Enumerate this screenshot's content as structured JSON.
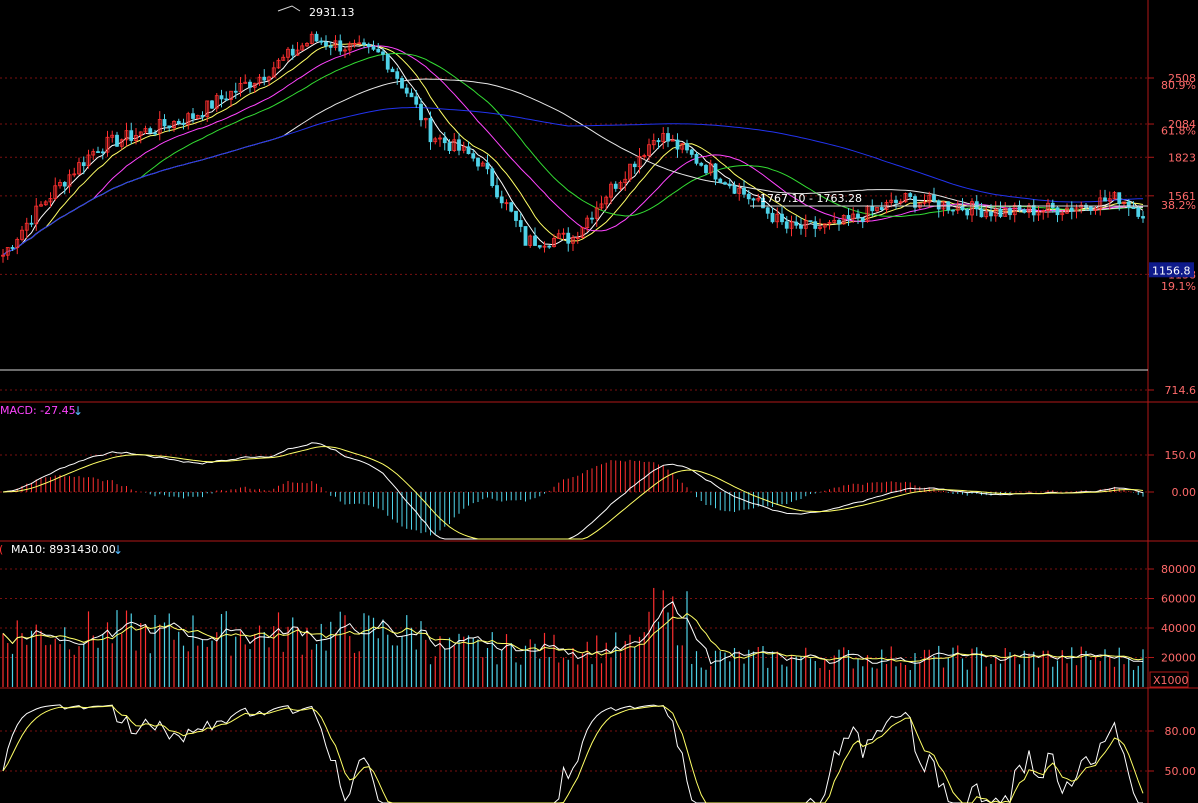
{
  "colors": {
    "background": "#000000",
    "frame": "#b01818",
    "grid": "#7a1010",
    "axis_text": "#ff6a6a",
    "up_candle": "#ff3030",
    "down_candle": "#4fd2e8",
    "ma5": "#ffffff",
    "ma10": "#ffff66",
    "ma20": "#ff44ff",
    "ma30": "#33dd33",
    "ma60": "#e8e8e8",
    "ma120": "#2233ee",
    "macd_label": "#ff44ff",
    "indicator_label": "#ffffff",
    "arrow": "#55bbff",
    "price_tag_bg": "#0e1a8a",
    "price_tag_text": "#ffffff"
  },
  "price_panel": {
    "axis_labels": [
      {
        "price": 2508,
        "text": "2508"
      },
      {
        "price": 2084,
        "text": "2084"
      },
      {
        "price": 1823,
        "text": "1823"
      },
      {
        "price": 1561,
        "text": "1561"
      },
      {
        "price": 1138,
        "text": "1138"
      },
      {
        "price": 714.6,
        "text": "714.6"
      }
    ],
    "fib_labels": [
      {
        "price": 2440,
        "text": "80.9%"
      },
      {
        "price": 2030,
        "text": "61.8%"
      },
      {
        "price": 1505,
        "text": "38.2%"
      },
      {
        "price": 1085,
        "text": "19.1%"
      }
    ],
    "current_price_tag": {
      "price": 1156.8,
      "text": "1156.8"
    },
    "high_marker": {
      "label": "2931.13",
      "price": 2931.13
    },
    "range_annotation": {
      "label": "1767.10 - 1763.28",
      "price": 1765
    }
  },
  "macd_panel": {
    "label": "MACD: -27.45",
    "axis_labels": [
      {
        "value": 150,
        "text": "150.0"
      },
      {
        "value": 0,
        "text": "0.00"
      }
    ]
  },
  "volume_panel": {
    "label": "MA10: 8931430.00",
    "axis_labels": [
      {
        "value": 80000,
        "text": "80000"
      },
      {
        "value": 60000,
        "text": "60000"
      },
      {
        "value": 40000,
        "text": "40000"
      },
      {
        "value": 20000,
        "text": "20000"
      }
    ],
    "unit_label": "X1000"
  },
  "kdj_panel": {
    "axis_labels": [
      {
        "value": 80,
        "text": "80.00"
      },
      {
        "value": 50,
        "text": "50.00"
      }
    ]
  },
  "chart_data": {
    "type": "line",
    "title": "",
    "xlabel": "",
    "ylabel": "",
    "price_range_visible": [
      714.6,
      3000
    ],
    "close_trend_approx": [
      {
        "i": 0,
        "close": 1230
      },
      {
        "i": 20,
        "close": 1900
      },
      {
        "i": 40,
        "close": 2150
      },
      {
        "i": 55,
        "close": 2550
      },
      {
        "i": 65,
        "close": 2931
      },
      {
        "i": 80,
        "close": 2750
      },
      {
        "i": 90,
        "close": 2000
      },
      {
        "i": 100,
        "close": 1800
      },
      {
        "i": 110,
        "close": 1300
      },
      {
        "i": 120,
        "close": 1320
      },
      {
        "i": 130,
        "close": 1680
      },
      {
        "i": 138,
        "close": 2000
      },
      {
        "i": 147,
        "close": 1780
      },
      {
        "i": 155,
        "close": 1600
      },
      {
        "i": 165,
        "close": 1370
      },
      {
        "i": 175,
        "close": 1380
      },
      {
        "i": 190,
        "close": 1540
      },
      {
        "i": 210,
        "close": 1460
      },
      {
        "i": 225,
        "close": 1490
      },
      {
        "i": 235,
        "close": 1550
      },
      {
        "i": 240,
        "close": 1460
      }
    ],
    "macd_value": -27.45,
    "volume_ma10": 8931430.0,
    "volume_unit": "X1000",
    "last_price": 1156.8,
    "high": 2931.13
  }
}
